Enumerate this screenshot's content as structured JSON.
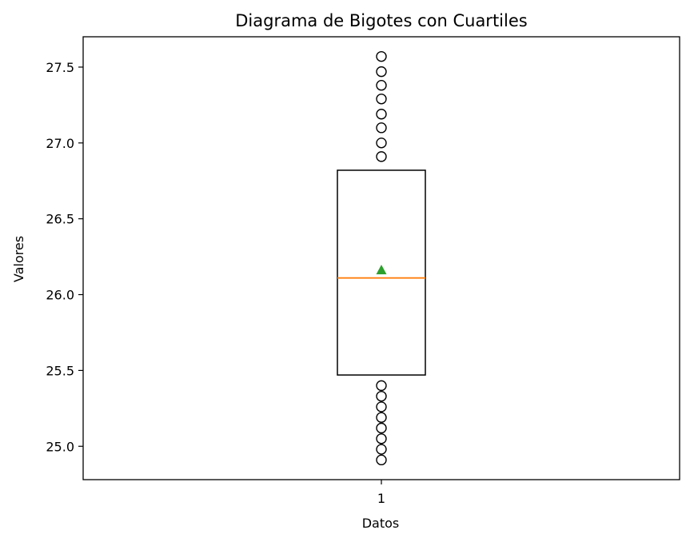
{
  "chart_data": {
    "type": "box",
    "title": "Diagrama de Bigotes con Cuartiles",
    "xlabel": "Datos",
    "ylabel": "Valores",
    "categories": [
      "1"
    ],
    "ylim": [
      24.78,
      27.7
    ],
    "yticks": [
      25.0,
      25.5,
      26.0,
      26.5,
      27.0,
      27.5
    ],
    "ytick_labels": [
      "25.0",
      "25.5",
      "26.0",
      "26.5",
      "27.0",
      "27.5"
    ],
    "boxes": [
      {
        "category": "1",
        "q1": 25.47,
        "median": 26.11,
        "q3": 26.82,
        "mean": 26.16,
        "outliers": [
          24.91,
          24.98,
          25.05,
          25.12,
          25.19,
          25.26,
          25.33,
          25.4,
          26.91,
          27.0,
          27.1,
          27.19,
          27.29,
          27.38,
          27.47,
          27.57
        ]
      }
    ],
    "colors": {
      "box": "#000000",
      "median": "#ff7f0e",
      "mean": "#2ca02c",
      "outlier": "#000000"
    },
    "grid": false,
    "legend": "none"
  }
}
